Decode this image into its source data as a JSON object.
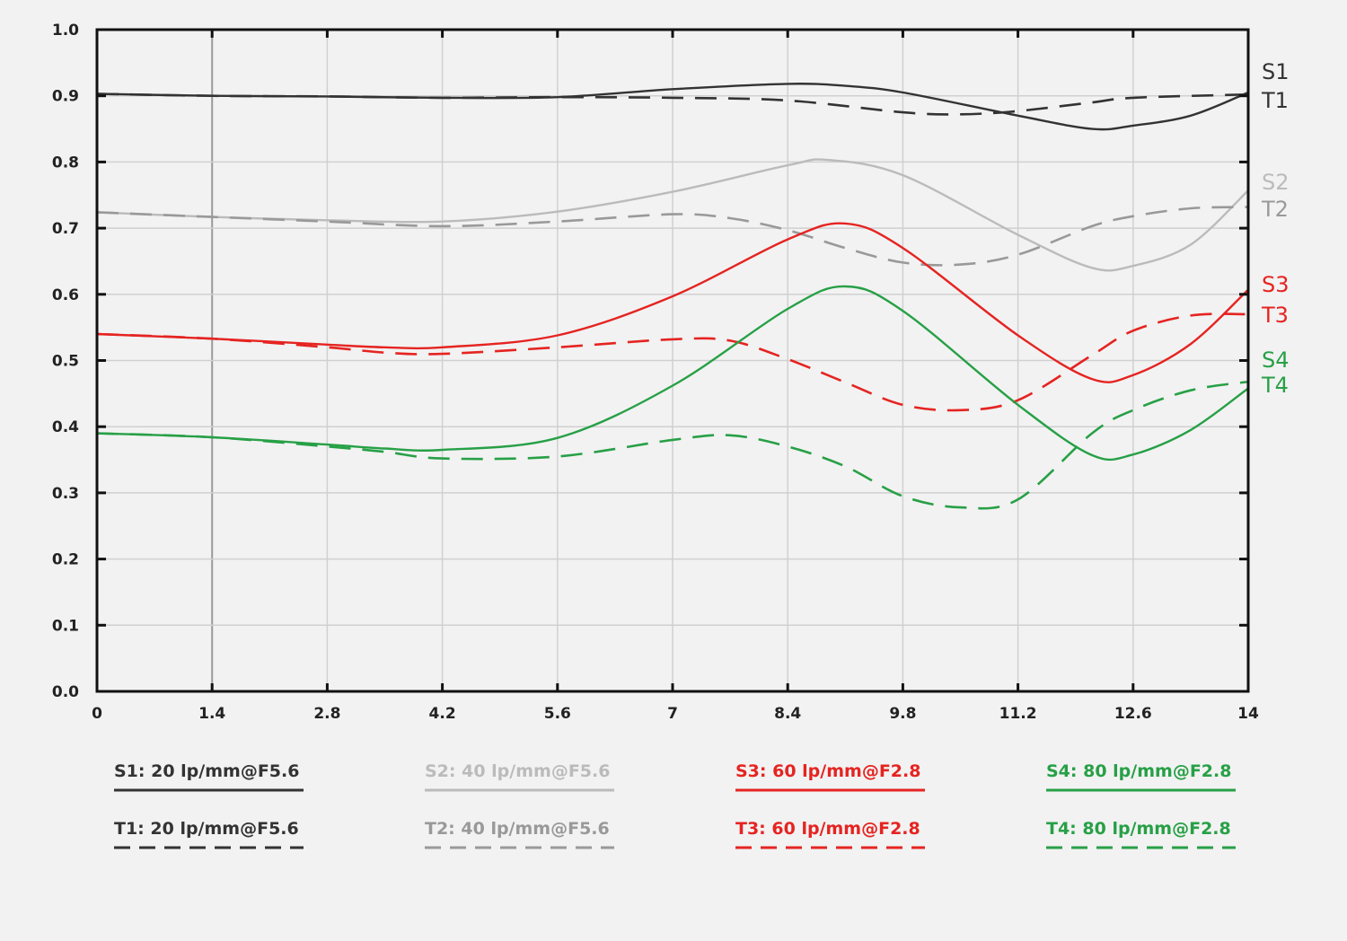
{
  "chart_data": {
    "type": "line",
    "title": "",
    "xlabel": "",
    "ylabel": "",
    "xlim": [
      0,
      14
    ],
    "ylim": [
      0.0,
      1.0
    ],
    "x_ticks": [
      "0",
      "1.4",
      "2.8",
      "4.2",
      "5.6",
      "7",
      "8.4",
      "9.8",
      "11.2",
      "12.6",
      "14"
    ],
    "y_ticks": [
      "0.0",
      "0.1",
      "0.2",
      "0.3",
      "0.4",
      "0.5",
      "0.6",
      "0.7",
      "0.8",
      "0.9",
      "1.0"
    ],
    "grid": true,
    "legend_position": "bottom",
    "series": [
      {
        "name": "S1: 20 lp/mm@F5.6",
        "end_label": "S1",
        "color": "#333333",
        "style": "solid",
        "points": [
          [
            0,
            0.903
          ],
          [
            1.4,
            0.9
          ],
          [
            2.8,
            0.899
          ],
          [
            4.2,
            0.897
          ],
          [
            5.6,
            0.898
          ],
          [
            7,
            0.91
          ],
          [
            8.4,
            0.918
          ],
          [
            9.1,
            0.915
          ],
          [
            9.8,
            0.905
          ],
          [
            11.2,
            0.87
          ],
          [
            12.1,
            0.85
          ],
          [
            12.6,
            0.855
          ],
          [
            13.3,
            0.87
          ],
          [
            14,
            0.905
          ]
        ]
      },
      {
        "name": "T1: 20 lp/mm@F5.6",
        "end_label": "T1",
        "color": "#333333",
        "style": "dashed",
        "points": [
          [
            0,
            0.903
          ],
          [
            1.4,
            0.9
          ],
          [
            2.8,
            0.899
          ],
          [
            4.2,
            0.897
          ],
          [
            5.6,
            0.898
          ],
          [
            7,
            0.897
          ],
          [
            8.4,
            0.893
          ],
          [
            9.8,
            0.875
          ],
          [
            10.5,
            0.872
          ],
          [
            11.2,
            0.877
          ],
          [
            12.1,
            0.89
          ],
          [
            12.6,
            0.897
          ],
          [
            14,
            0.902
          ]
        ]
      },
      {
        "name": "S2: 40 lp/mm@F5.6",
        "end_label": "S2",
        "color": "#bbbbbb",
        "style": "solid",
        "points": [
          [
            0,
            0.724
          ],
          [
            1.4,
            0.717
          ],
          [
            2.8,
            0.712
          ],
          [
            4.2,
            0.71
          ],
          [
            5.6,
            0.725
          ],
          [
            7,
            0.755
          ],
          [
            8.4,
            0.795
          ],
          [
            8.9,
            0.803
          ],
          [
            9.8,
            0.78
          ],
          [
            11.2,
            0.69
          ],
          [
            12.1,
            0.64
          ],
          [
            12.6,
            0.643
          ],
          [
            13.3,
            0.675
          ],
          [
            14,
            0.757
          ]
        ]
      },
      {
        "name": "T2: 40 lp/mm@F5.6",
        "end_label": "T2",
        "color": "#999999",
        "style": "dashed",
        "points": [
          [
            0,
            0.724
          ],
          [
            1.4,
            0.717
          ],
          [
            2.8,
            0.71
          ],
          [
            4.2,
            0.703
          ],
          [
            5.6,
            0.71
          ],
          [
            7,
            0.721
          ],
          [
            7.7,
            0.715
          ],
          [
            8.4,
            0.697
          ],
          [
            9.1,
            0.67
          ],
          [
            9.8,
            0.648
          ],
          [
            10.5,
            0.645
          ],
          [
            11.2,
            0.66
          ],
          [
            12.1,
            0.703
          ],
          [
            12.6,
            0.718
          ],
          [
            13.3,
            0.73
          ],
          [
            14,
            0.732
          ]
        ]
      },
      {
        "name": "S3: 60 lp/mm@F2.8",
        "end_label": "S3",
        "color": "#e52421",
        "style": "solid",
        "points": [
          [
            0,
            0.54
          ],
          [
            1.4,
            0.533
          ],
          [
            2.8,
            0.524
          ],
          [
            3.5,
            0.52
          ],
          [
            4.2,
            0.52
          ],
          [
            5.6,
            0.538
          ],
          [
            7,
            0.597
          ],
          [
            8.4,
            0.683
          ],
          [
            9.1,
            0.707
          ],
          [
            9.8,
            0.67
          ],
          [
            11.2,
            0.538
          ],
          [
            12.1,
            0.472
          ],
          [
            12.6,
            0.478
          ],
          [
            13.3,
            0.525
          ],
          [
            14,
            0.607
          ]
        ]
      },
      {
        "name": "T3: 60 lp/mm@F2.8",
        "end_label": "T3",
        "color": "#e52421",
        "style": "dashed",
        "points": [
          [
            0,
            0.54
          ],
          [
            1.4,
            0.533
          ],
          [
            2.8,
            0.52
          ],
          [
            3.5,
            0.512
          ],
          [
            4.2,
            0.51
          ],
          [
            5.6,
            0.52
          ],
          [
            7,
            0.532
          ],
          [
            7.7,
            0.53
          ],
          [
            8.4,
            0.502
          ],
          [
            9.1,
            0.467
          ],
          [
            9.8,
            0.433
          ],
          [
            10.5,
            0.425
          ],
          [
            11.2,
            0.44
          ],
          [
            12.1,
            0.508
          ],
          [
            12.6,
            0.545
          ],
          [
            13.3,
            0.568
          ],
          [
            14,
            0.57
          ]
        ]
      },
      {
        "name": "S4: 80 lp/mm@F2.8",
        "end_label": "S4",
        "color": "#27a046",
        "style": "solid",
        "points": [
          [
            0,
            0.39
          ],
          [
            1.4,
            0.384
          ],
          [
            2.8,
            0.373
          ],
          [
            3.5,
            0.367
          ],
          [
            4.2,
            0.365
          ],
          [
            5.6,
            0.383
          ],
          [
            7,
            0.462
          ],
          [
            8.4,
            0.578
          ],
          [
            9.1,
            0.612
          ],
          [
            9.8,
            0.575
          ],
          [
            11.2,
            0.433
          ],
          [
            12.1,
            0.357
          ],
          [
            12.6,
            0.358
          ],
          [
            13.3,
            0.395
          ],
          [
            14,
            0.458
          ]
        ]
      },
      {
        "name": "T4: 80 lp/mm@F2.8",
        "end_label": "T4",
        "color": "#27a046",
        "style": "dashed",
        "points": [
          [
            0,
            0.39
          ],
          [
            1.4,
            0.384
          ],
          [
            2.8,
            0.37
          ],
          [
            3.5,
            0.362
          ],
          [
            4.2,
            0.352
          ],
          [
            5.6,
            0.355
          ],
          [
            7,
            0.38
          ],
          [
            7.7,
            0.387
          ],
          [
            8.4,
            0.37
          ],
          [
            9.1,
            0.34
          ],
          [
            9.8,
            0.295
          ],
          [
            10.5,
            0.278
          ],
          [
            11.2,
            0.29
          ],
          [
            12.1,
            0.39
          ],
          [
            12.6,
            0.425
          ],
          [
            13.3,
            0.455
          ],
          [
            14,
            0.468
          ]
        ]
      }
    ]
  }
}
